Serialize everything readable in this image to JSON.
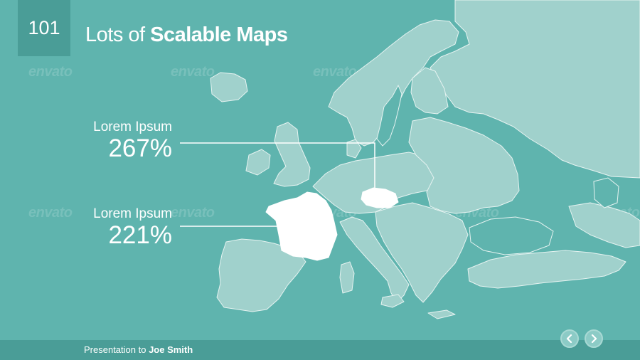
{
  "slide": {
    "number": "101",
    "title_light": "Lots of ",
    "title_bold": "Scalable Maps"
  },
  "callouts": [
    {
      "label": "Lorem Ipsum",
      "value": "267%",
      "country": "Czech Republic"
    },
    {
      "label": "Lorem Ipsum",
      "value": "221%",
      "country": "France"
    }
  ],
  "footer": {
    "prefix": "Presentation to ",
    "name": "Joe Smith"
  },
  "navigation": {
    "prev_icon": "chevron-left-icon",
    "next_icon": "chevron-right-icon"
  },
  "watermark": "envato",
  "colors": {
    "background": "#5fb4ae",
    "panel": "#4a9d97",
    "land": "#a0d1cc",
    "highlight": "#ffffff"
  }
}
